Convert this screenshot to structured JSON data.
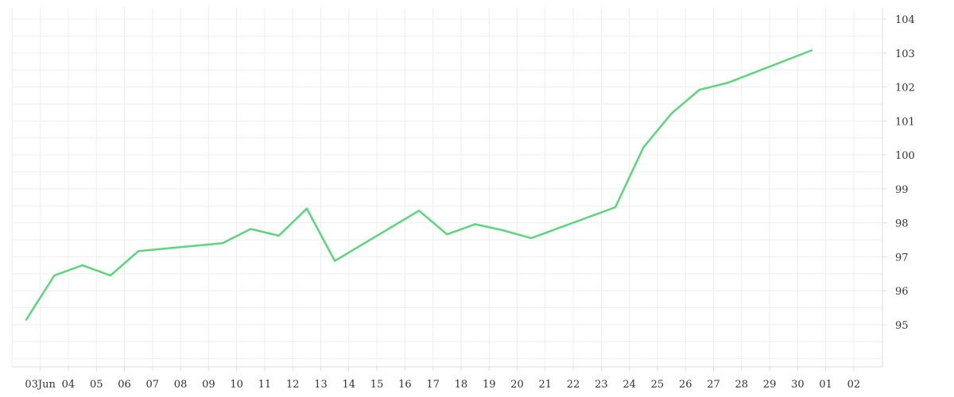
{
  "chart_data": {
    "type": "line",
    "xlabel": "",
    "ylabel": "",
    "grid": true,
    "legend": "none",
    "line_color": "#5cd67c",
    "grid_color": "#eeeeee",
    "axis_color": "#dddddd",
    "label_color": "#333333",
    "ylim": [
      94,
      104
    ],
    "yticks": [
      95,
      96,
      97,
      98,
      99,
      100,
      101,
      102,
      103,
      104
    ],
    "xticks": [
      {
        "t": 1.5,
        "label": "03Jun"
      },
      {
        "t": 2.5,
        "label": "04"
      },
      {
        "t": 3.5,
        "label": "05"
      },
      {
        "t": 4.5,
        "label": "06"
      },
      {
        "t": 5.5,
        "label": "07"
      },
      {
        "t": 6.5,
        "label": "08"
      },
      {
        "t": 7.5,
        "label": "09"
      },
      {
        "t": 8.5,
        "label": "10"
      },
      {
        "t": 9.5,
        "label": "11"
      },
      {
        "t": 10.5,
        "label": "12"
      },
      {
        "t": 11.5,
        "label": "13"
      },
      {
        "t": 12.5,
        "label": "14"
      },
      {
        "t": 13.5,
        "label": "15"
      },
      {
        "t": 14.5,
        "label": "16"
      },
      {
        "t": 15.5,
        "label": "17"
      },
      {
        "t": 16.5,
        "label": "18"
      },
      {
        "t": 17.5,
        "label": "19"
      },
      {
        "t": 18.5,
        "label": "20"
      },
      {
        "t": 19.5,
        "label": "21"
      },
      {
        "t": 20.5,
        "label": "22"
      },
      {
        "t": 21.5,
        "label": "23"
      },
      {
        "t": 22.5,
        "label": "24"
      },
      {
        "t": 23.5,
        "label": "25"
      },
      {
        "t": 24.5,
        "label": "26"
      },
      {
        "t": 25.5,
        "label": "27"
      },
      {
        "t": 26.5,
        "label": "28"
      },
      {
        "t": 27.5,
        "label": "29"
      },
      {
        "t": 28.5,
        "label": "30"
      },
      {
        "t": 29.5,
        "label": "01"
      },
      {
        "t": 30.5,
        "label": "02"
      }
    ],
    "xlim": [
      0.5,
      31.0
    ],
    "series": [
      {
        "points": [
          {
            "t": 1.0,
            "y": 95.15
          },
          {
            "t": 2.0,
            "y": 96.45
          },
          {
            "t": 3.0,
            "y": 96.75
          },
          {
            "t": 4.0,
            "y": 96.45
          },
          {
            "t": 5.0,
            "y": 97.17
          },
          {
            "t": 8.0,
            "y": 97.4
          },
          {
            "t": 9.0,
            "y": 97.82
          },
          {
            "t": 10.0,
            "y": 97.62
          },
          {
            "t": 11.0,
            "y": 98.42
          },
          {
            "t": 12.0,
            "y": 96.88
          },
          {
            "t": 15.0,
            "y": 98.36
          },
          {
            "t": 16.0,
            "y": 97.66
          },
          {
            "t": 17.0,
            "y": 97.96
          },
          {
            "t": 18.0,
            "y": 97.78
          },
          {
            "t": 19.0,
            "y": 97.55
          },
          {
            "t": 22.0,
            "y": 98.46
          },
          {
            "t": 23.0,
            "y": 100.22
          },
          {
            "t": 24.0,
            "y": 101.22
          },
          {
            "t": 25.0,
            "y": 101.92
          },
          {
            "t": 26.0,
            "y": 102.12
          },
          {
            "t": 29.0,
            "y": 103.08
          }
        ]
      }
    ]
  }
}
